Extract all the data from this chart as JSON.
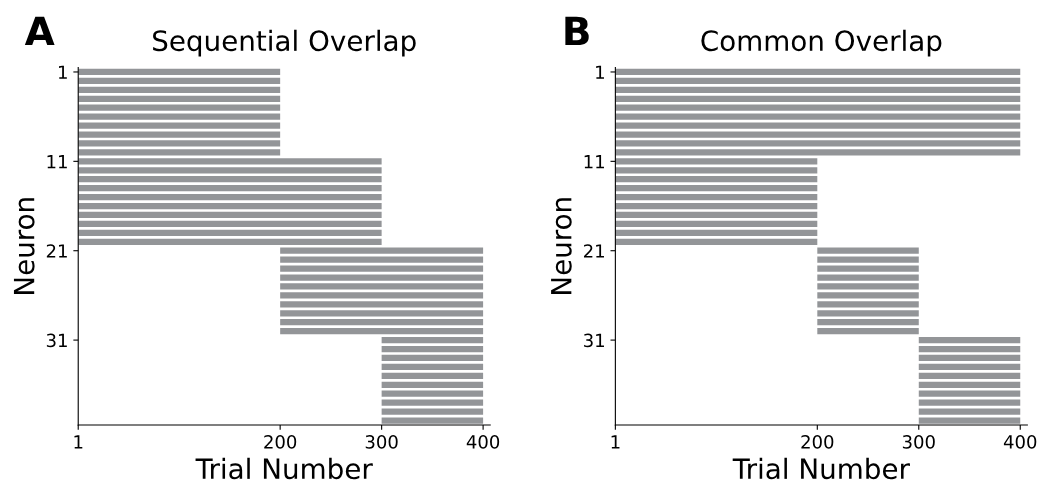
{
  "chart_data": [
    {
      "type": "bar",
      "orientation": "horizontal",
      "title": "Sequential Overlap",
      "annotations": [
        "A"
      ],
      "xlabel": "Trial Number",
      "ylabel": "Neuron",
      "color": "#939598",
      "xlim": [
        1,
        407
      ],
      "xticks": [
        1,
        200,
        300,
        400
      ],
      "grid": false,
      "legend": false,
      "categories": [
        "1",
        null,
        null,
        null,
        null,
        null,
        null,
        null,
        null,
        null,
        "11",
        null,
        null,
        null,
        null,
        null,
        null,
        null,
        null,
        null,
        "21",
        null,
        null,
        null,
        null,
        null,
        null,
        null,
        null,
        null,
        "31",
        null,
        null,
        null,
        null,
        null,
        null,
        null,
        null,
        null
      ],
      "base": [
        1,
        1,
        1,
        1,
        1,
        1,
        1,
        1,
        1,
        1,
        1,
        1,
        1,
        1,
        1,
        1,
        1,
        1,
        1,
        1,
        200,
        200,
        200,
        200,
        200,
        200,
        200,
        200,
        200,
        200,
        300,
        300,
        300,
        300,
        300,
        300,
        300,
        300,
        300,
        300
      ],
      "values": [
        199,
        199,
        199,
        199,
        199,
        199,
        199,
        199,
        199,
        199,
        299,
        299,
        299,
        299,
        299,
        299,
        299,
        299,
        299,
        299,
        200,
        200,
        200,
        200,
        200,
        200,
        200,
        200,
        200,
        200,
        100,
        100,
        100,
        100,
        100,
        100,
        100,
        100,
        100,
        100
      ]
    },
    {
      "type": "bar",
      "orientation": "horizontal",
      "title": "Common Overlap",
      "annotations": [
        "B"
      ],
      "xlabel": "Trial Number",
      "ylabel": "Neuron",
      "color": "#939598",
      "xlim": [
        1,
        407
      ],
      "xticks": [
        1,
        200,
        300,
        400
      ],
      "grid": false,
      "legend": false,
      "categories": [
        "1",
        null,
        null,
        null,
        null,
        null,
        null,
        null,
        null,
        null,
        "11",
        null,
        null,
        null,
        null,
        null,
        null,
        null,
        null,
        null,
        "21",
        null,
        null,
        null,
        null,
        null,
        null,
        null,
        null,
        null,
        "31",
        null,
        null,
        null,
        null,
        null,
        null,
        null,
        null,
        null
      ],
      "base": [
        1,
        1,
        1,
        1,
        1,
        1,
        1,
        1,
        1,
        1,
        1,
        1,
        1,
        1,
        1,
        1,
        1,
        1,
        1,
        1,
        200,
        200,
        200,
        200,
        200,
        200,
        200,
        200,
        200,
        200,
        300,
        300,
        300,
        300,
        300,
        300,
        300,
        300,
        300,
        300
      ],
      "values": [
        399,
        399,
        399,
        399,
        399,
        399,
        399,
        399,
        399,
        399,
        199,
        199,
        199,
        199,
        199,
        199,
        199,
        199,
        199,
        199,
        100,
        100,
        100,
        100,
        100,
        100,
        100,
        100,
        100,
        100,
        100,
        100,
        100,
        100,
        100,
        100,
        100,
        100,
        100,
        100
      ]
    }
  ]
}
